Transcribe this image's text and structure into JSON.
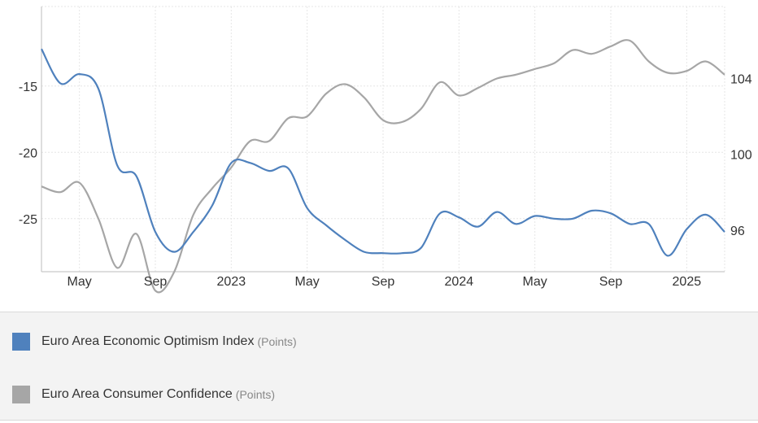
{
  "chart_data": {
    "type": "line",
    "x_ticks": [
      "May",
      "Sep",
      "2023",
      "May",
      "Sep",
      "2024",
      "May",
      "Sep",
      "2025"
    ],
    "x": [
      "2022-03",
      "2022-04",
      "2022-05",
      "2022-06",
      "2022-07",
      "2022-08",
      "2022-09",
      "2022-10",
      "2022-11",
      "2022-12",
      "2023-01",
      "2023-02",
      "2023-03",
      "2023-04",
      "2023-05",
      "2023-06",
      "2023-07",
      "2023-08",
      "2023-09",
      "2023-10",
      "2023-11",
      "2023-12",
      "2024-01",
      "2024-02",
      "2024-03",
      "2024-04",
      "2024-05",
      "2024-06",
      "2024-07",
      "2024-08",
      "2024-09",
      "2024-10",
      "2024-11",
      "2024-12",
      "2025-01",
      "2025-02",
      "2025-03"
    ],
    "left_axis": {
      "ticks": [
        -15,
        -20,
        -25
      ],
      "range": [
        -29,
        -9
      ]
    },
    "right_axis": {
      "ticks": [
        104,
        100,
        96
      ],
      "range": [
        93.8,
        107.8
      ]
    },
    "series": [
      {
        "name": "Euro Area Economic Optimism Index",
        "unit": "(Points)",
        "axis": "left",
        "color": "#4f81bd",
        "values": [
          -12.2,
          -14.8,
          -14.1,
          -15.2,
          -21.0,
          -21.8,
          -26.0,
          -27.5,
          -26.0,
          -24.0,
          -20.8,
          -20.8,
          -21.4,
          -21.2,
          -24.2,
          -25.5,
          -26.6,
          -27.5,
          -27.6,
          -27.6,
          -27.2,
          -24.6,
          -24.9,
          -25.6,
          -24.5,
          -25.4,
          -24.8,
          -25.0,
          -25.0,
          -24.4,
          -24.6,
          -25.4,
          -25.4,
          -27.8,
          -25.8,
          -24.7,
          -26.0
        ]
      },
      {
        "name": "Euro Area Consumer Confidence",
        "unit": "(Points)",
        "axis": "right",
        "color": "#a6a6a6",
        "values": [
          98.3,
          98.0,
          98.5,
          96.6,
          94.0,
          95.8,
          92.8,
          93.8,
          96.8,
          98.2,
          99.3,
          100.7,
          100.7,
          101.9,
          102.0,
          103.2,
          103.7,
          103.0,
          101.8,
          101.7,
          102.4,
          103.8,
          103.1,
          103.5,
          104.0,
          104.2,
          104.5,
          104.8,
          105.5,
          105.3,
          105.7,
          106.0,
          104.9,
          104.3,
          104.4,
          104.9,
          104.2
        ]
      }
    ]
  }
}
